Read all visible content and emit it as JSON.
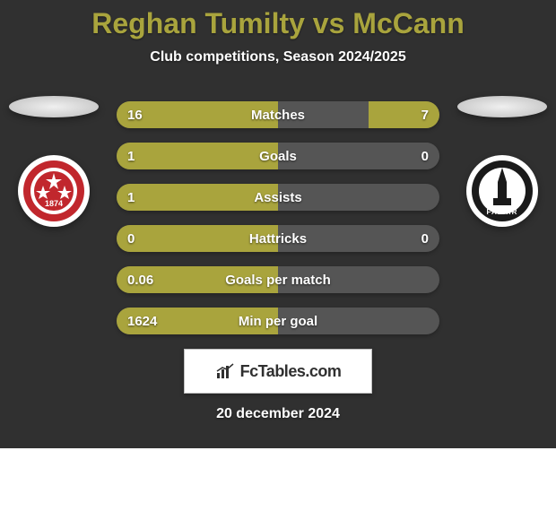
{
  "background": {
    "top_color": "#303030",
    "bottom_color": "#ffffff"
  },
  "title": {
    "text": "Reghan Tumilty vs McCann",
    "color": "#a9a43d",
    "fontsize": 32
  },
  "subtitle": {
    "text": "Club competitions, Season 2024/2025",
    "color": "#ffffff",
    "fontsize": 16
  },
  "players": {
    "left": {
      "name": "Reghan Tumilty",
      "flag": {
        "color": "#f0f0f0"
      },
      "crest": {
        "bg": "#ffffff",
        "ring": "#c1272d",
        "inner": "#c1272d",
        "text": "1874",
        "text_color": "#ffffff"
      }
    },
    "right": {
      "name": "McCann",
      "flag": {
        "color": "#f0f0f0"
      },
      "crest": {
        "bg": "#ffffff",
        "ring": "#1a1a1a",
        "inner": "#ffffff",
        "text": "FALKIR",
        "text_color": "#ffffff",
        "spire_color": "#1a1a1a"
      }
    }
  },
  "bars": {
    "track_color": "#555555",
    "left_color": "#a9a43d",
    "right_color": "#a9a43d",
    "right_unfilled_color": "#555555",
    "rows": [
      {
        "label": "Matches",
        "left": "16",
        "right": "7",
        "left_pct": 50,
        "right_pct": 22,
        "right_filled": true
      },
      {
        "label": "Goals",
        "left": "1",
        "right": "0",
        "left_pct": 50,
        "right_pct": 18,
        "right_filled": false
      },
      {
        "label": "Assists",
        "left": "1",
        "right": "",
        "left_pct": 50,
        "right_pct": 0,
        "right_filled": false
      },
      {
        "label": "Hattricks",
        "left": "0",
        "right": "0",
        "left_pct": 50,
        "right_pct": 0,
        "right_filled": false
      },
      {
        "label": "Goals per match",
        "left": "0.06",
        "right": "",
        "left_pct": 50,
        "right_pct": 0,
        "right_filled": false
      },
      {
        "label": "Min per goal",
        "left": "1624",
        "right": "",
        "left_pct": 50,
        "right_pct": 0,
        "right_filled": false
      }
    ]
  },
  "footer": {
    "brand": "FcTables.com",
    "date": "20 december 2024"
  }
}
